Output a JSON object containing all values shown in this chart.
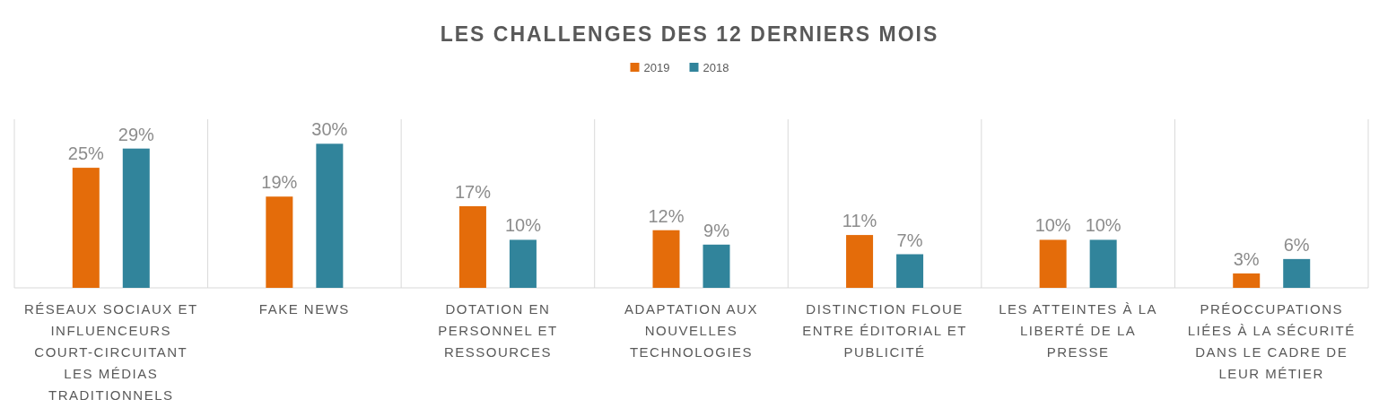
{
  "chart_data": {
    "type": "bar",
    "title": "LES CHALLENGES DES 12 DERNIERS MOIS",
    "categories": [
      "RÉSEAUX SOCIAUX ET INFLUENCEURS COURT-CIRCUITANT LES MÉDIAS TRADITIONNELS",
      "FAKE NEWS",
      "DOTATION EN PERSONNEL ET RESSOURCES",
      "ADAPTATION AUX NOUVELLES TECHNOLOGIES",
      "DISTINCTION FLOUE ENTRE ÉDITORIAL ET PUBLICITÉ",
      "LES ATTEINTES À LA LIBERTÉ DE LA PRESSE",
      "PRÉOCCUPATIONS LIÉES À LA SÉCURITÉ DANS LE CADRE DE LEUR MÉTIER"
    ],
    "series": [
      {
        "name": "2019",
        "color": "#e46c0a",
        "values": [
          25,
          19,
          17,
          12,
          11,
          10,
          3
        ],
        "value_labels": [
          "25%",
          "19%",
          "17%",
          "12%",
          "11%",
          "10%",
          "3%"
        ]
      },
      {
        "name": "2018",
        "color": "#31849b",
        "values": [
          29,
          30,
          10,
          9,
          7,
          10,
          6
        ],
        "value_labels": [
          "29%",
          "30%",
          "10%",
          "9%",
          "7%",
          "10%",
          "6%"
        ]
      }
    ],
    "grid": "x",
    "legend": "top"
  }
}
